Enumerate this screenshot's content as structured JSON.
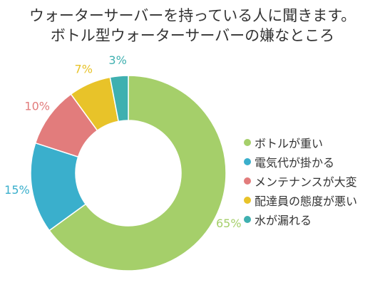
{
  "chart_data": {
    "type": "pie",
    "variant": "donut",
    "title": [
      "ウォーターサーバーを持っている人に聞きます。",
      "ボトル型ウォーターサーバーの嫌なところ"
    ],
    "categories": [
      "ボトルが重い",
      "電気代が掛かる",
      "メンテナンスが大変",
      "配達員の態度が悪い",
      "水が漏れる"
    ],
    "values": [
      65,
      15,
      10,
      7,
      3
    ],
    "labels": [
      "65%",
      "15%",
      "10%",
      "7%",
      "3%"
    ],
    "colors": [
      "#a5cf6a",
      "#3aafcc",
      "#e27c7c",
      "#e8c329",
      "#3fb0b0"
    ],
    "legend_position": "right",
    "unit": "%"
  }
}
